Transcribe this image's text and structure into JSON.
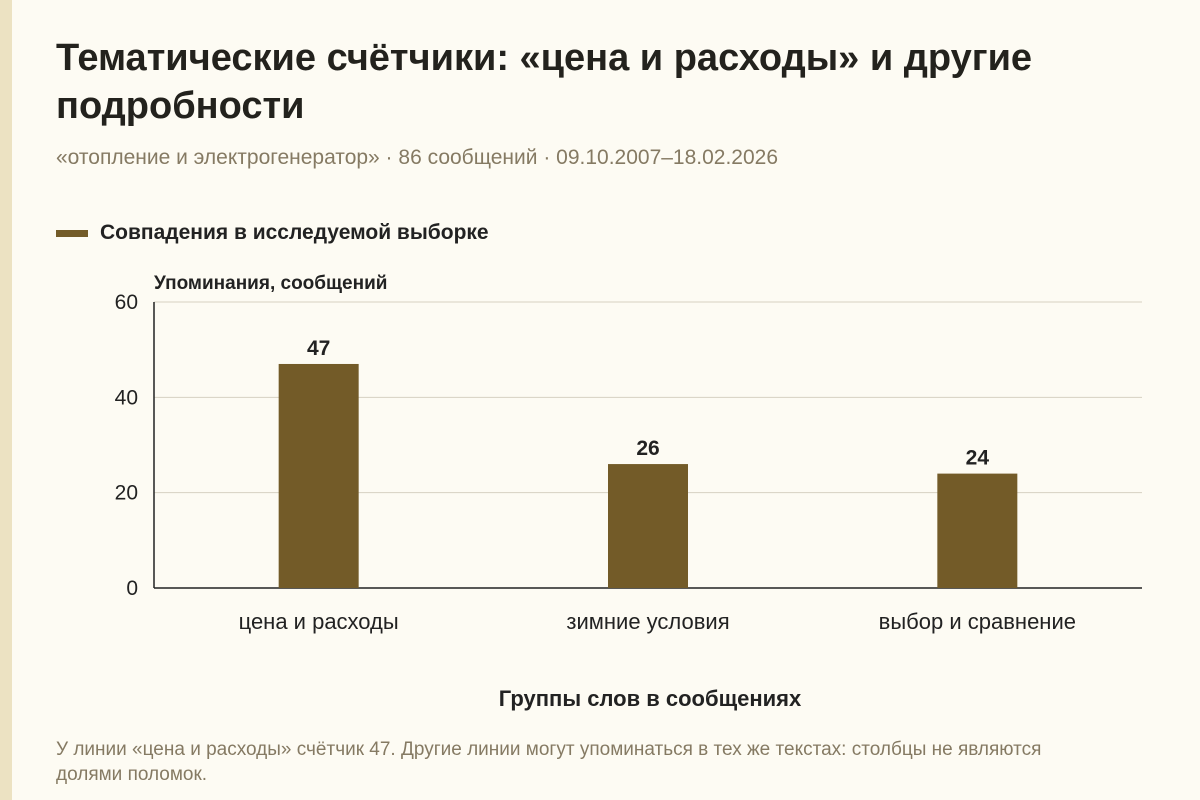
{
  "header": {
    "title": "Тематические счётчики: «цена и расходы» и другие подробности",
    "subtitle": "«отопление и электрогенератор» · 86 сообщений · 09.10.2007–18.02.2026"
  },
  "legend": {
    "label": "Совпадения в исследуемой выборке"
  },
  "footer": {
    "note": "У линии «цена и расходы» счётчик 47. Другие линии могут упоминаться в тех же текстах: столбцы не являются долями поломок."
  },
  "colors": {
    "bar": "#735b28",
    "grid": "#d6d1c2",
    "axis": "#222222",
    "background": "#fdfbf3"
  },
  "chart_data": {
    "type": "bar",
    "title": "Тематические счётчики: «цена и расходы» и другие подробности",
    "xlabel": "Группы слов в сообщениях",
    "ylabel": "Упоминания, сообщений",
    "categories": [
      "цена и расходы",
      "зимние условия",
      "выбор и сравнение"
    ],
    "series": [
      {
        "name": "Совпадения в исследуемой выборке",
        "values": [
          47,
          26,
          24
        ]
      }
    ],
    "ylim": [
      0,
      60
    ],
    "yticks": [
      0,
      20,
      40,
      60
    ],
    "grid": true,
    "data_labels": true,
    "legend_position": "top-left"
  }
}
